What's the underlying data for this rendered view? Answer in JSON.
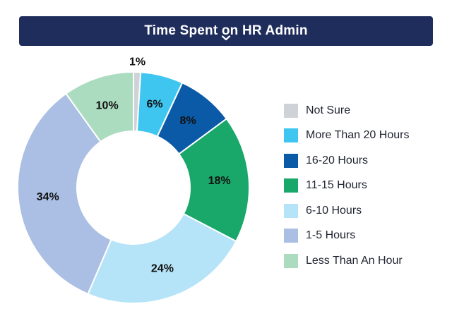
{
  "chart_data": {
    "type": "pie",
    "title": "Time Spent on HR Admin",
    "donut": true,
    "categories": [
      "Not Sure",
      "More Than 20 Hours",
      "16-20 Hours",
      "11-15 Hours",
      "6-10 Hours",
      "1-5 Hours",
      "Less Than An Hour"
    ],
    "values": [
      1,
      6,
      8,
      18,
      24,
      34,
      10
    ],
    "labels": [
      "1%",
      "6%",
      "8%",
      "18%",
      "24%",
      "34%",
      "10%"
    ],
    "colors": [
      "#cfd3d8",
      "#3ec6f0",
      "#0b5aa8",
      "#19a86a",
      "#b5e3f7",
      "#aabfe3",
      "#acdcc0"
    ],
    "legend_position": "right",
    "title_bar_color": "#1f2d5c"
  }
}
